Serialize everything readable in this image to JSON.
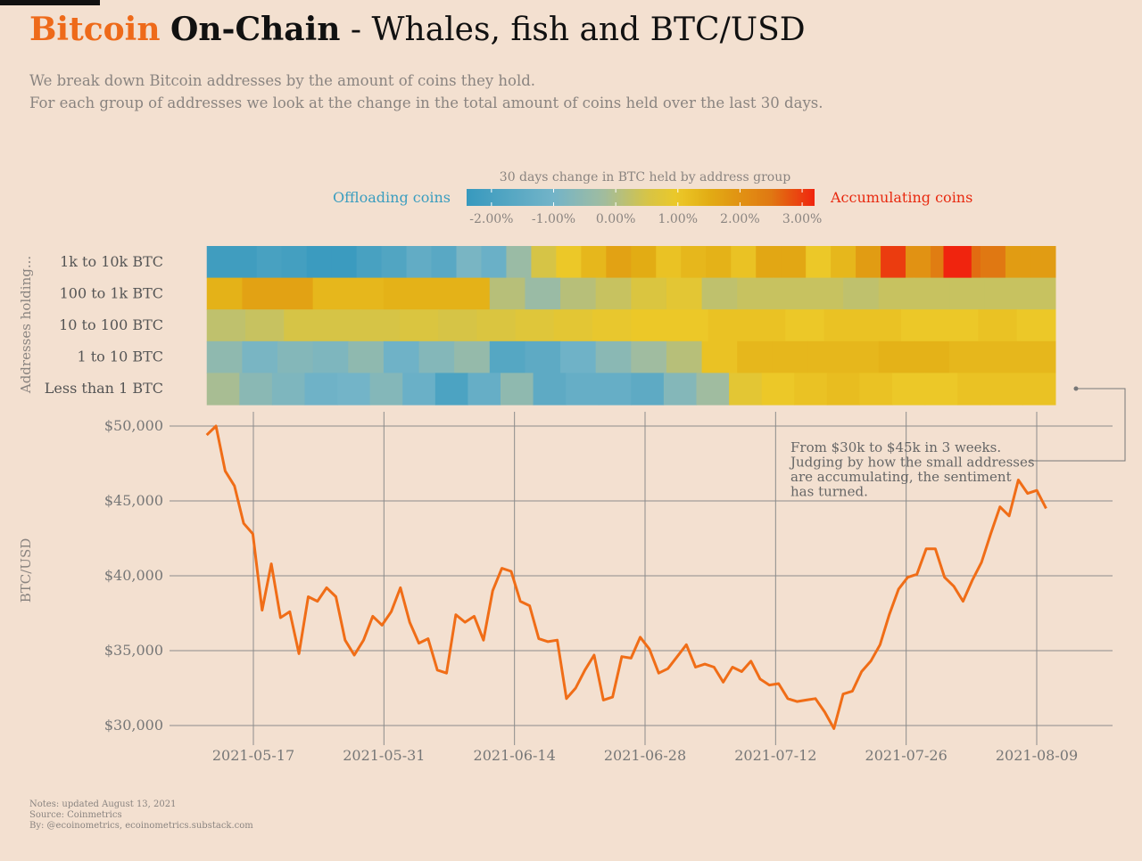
{
  "header": {
    "title_part1": "Bitcoin",
    "title_part2": "On-Chain",
    "title_part3": " - Whales, fish and BTC/USD",
    "subtitle_line1": "We break down Bitcoin addresses by the amount of coins they hold.",
    "subtitle_line2": "For each group of addresses we look at the change in the total amount of coins held over the last 30 days."
  },
  "colors": {
    "background": "#f3e0d0",
    "accent_orange": "#ee6a1a",
    "line": "#f06d17",
    "offloading": "#3a9dbf",
    "accumulating": "#e8290f",
    "grid": "#8c8c8c"
  },
  "legend": {
    "title": "30 days change in BTC held by address group",
    "left_label": "Offloading coins",
    "right_label": "Accumulating coins",
    "ticks": [
      "-2.00%",
      "-1.00%",
      "0.00%",
      "1.00%",
      "2.00%",
      "3.00%"
    ],
    "tick_values": [
      -2,
      -1,
      0,
      1,
      2,
      3
    ],
    "range": [
      -2.4,
      3.2
    ]
  },
  "chart_data": [
    {
      "type": "heatmap",
      "ylabel": "Addresses holding...",
      "rows": [
        "1k to 10k BTC",
        "100 to 1k BTC",
        "10 to 100 BTC",
        "1 to 10 BTC",
        "Less than 1 BTC"
      ],
      "x_start": "2021-05-12",
      "x_end": "2021-08-11",
      "unit": "percent",
      "segments": [
        [
          [
            -2.2,
            -2.2
          ],
          [
            -2.0,
            -2.1
          ],
          [
            -2.3,
            -2.3
          ],
          [
            -2.0,
            -1.8
          ],
          [
            -1.4,
            -1.6
          ],
          [
            -0.9,
            -1.2
          ],
          [
            -0.3,
            0.5
          ],
          [
            1.0,
            1.3
          ],
          [
            1.7,
            1.5
          ],
          [
            1.1,
            1.3
          ],
          [
            1.4,
            1.1
          ],
          [
            1.6,
            1.6
          ],
          [
            1.0,
            1.3
          ],
          [
            1.8,
            3.0
          ],
          [
            2.0,
            2.4
          ],
          [
            2.6,
            2.5
          ],
          [
            1.8,
            1.8
          ]
        ],
        [
          [
            1.4,
            1.7
          ],
          [
            1.7,
            1.3
          ],
          [
            1.3,
            1.4
          ],
          [
            1.4,
            1.4
          ],
          [
            0.1,
            -0.3
          ],
          [
            0.1,
            0.3
          ],
          [
            0.6,
            0.8
          ],
          [
            0.2,
            0.3
          ],
          [
            0.3,
            0.3
          ],
          [
            0.2,
            0.3
          ],
          [
            0.3,
            0.3
          ],
          [
            0.3,
            0.3
          ]
        ],
        [
          [
            0.2,
            0.3
          ],
          [
            0.5,
            0.5
          ],
          [
            0.5,
            0.6
          ],
          [
            0.5,
            0.6
          ],
          [
            0.7,
            0.8
          ],
          [
            0.9,
            1.0
          ],
          [
            1.0,
            1.1
          ],
          [
            1.1,
            1.0
          ],
          [
            1.1,
            1.1
          ],
          [
            1.0,
            1.0
          ],
          [
            1.1,
            1.0
          ]
        ],
        [
          [
            -0.5,
            -0.9
          ],
          [
            -0.7,
            -0.8
          ],
          [
            -0.5,
            -1.1
          ],
          [
            -0.7,
            -0.4
          ],
          [
            -1.7,
            -1.5
          ],
          [
            -1.1,
            -0.6
          ],
          [
            -0.2,
            0.1
          ],
          [
            1.1,
            1.3
          ],
          [
            1.3,
            1.3
          ],
          [
            1.3,
            1.4
          ],
          [
            1.4,
            1.3
          ],
          [
            1.3,
            1.3
          ]
        ],
        [
          [
            -0.1,
            -0.6
          ],
          [
            -0.8,
            -1.1
          ],
          [
            -1.0,
            -0.7
          ],
          [
            -1.2,
            -1.9
          ],
          [
            -1.3,
            -0.5
          ],
          [
            -1.5,
            -1.3
          ],
          [
            -1.3,
            -1.5
          ],
          [
            -0.7,
            -0.2
          ],
          [
            0.8,
            1.0
          ],
          [
            1.1,
            1.2
          ],
          [
            1.1,
            1.0
          ],
          [
            1.0,
            1.1
          ],
          [
            1.1,
            1.1
          ]
        ]
      ],
      "hotspot": {
        "row": 0,
        "from": "2021-07-30",
        "to": "2021-08-02",
        "value": 3.3
      }
    },
    {
      "type": "line",
      "ylabel": "BTC/USD",
      "xlabel": "",
      "ylim": [
        29000,
        50500
      ],
      "yticks": [
        30000,
        35000,
        40000,
        45000,
        50000
      ],
      "ytick_labels": [
        "$30,000",
        "$35,000",
        "$40,000",
        "$45,000",
        "$50,000"
      ],
      "xticks": [
        "2021-05-17",
        "2021-05-31",
        "2021-06-14",
        "2021-06-28",
        "2021-07-12",
        "2021-07-26",
        "2021-08-09"
      ],
      "x_start": "2021-05-12",
      "x_end": "2021-08-10",
      "series": [
        {
          "values": [
            49400,
            50000,
            47000,
            46000,
            43500,
            42800,
            37700,
            40800,
            37200,
            37600,
            34800,
            38600,
            38300,
            39200,
            38600,
            35700,
            34700,
            35700,
            37300,
            36700,
            37600,
            39200,
            36900,
            35500,
            35800,
            33700,
            33500,
            37400,
            36900,
            37300,
            35700,
            39000,
            40500,
            40300,
            38300,
            38000,
            35800,
            35600,
            35700,
            31800,
            32500,
            33700,
            34700,
            31700,
            31900,
            34600,
            34500,
            35900,
            35100,
            33500,
            33800,
            34600,
            35400,
            33900,
            34100,
            33900,
            32900,
            33900,
            33600,
            34300,
            33100,
            32700,
            32800,
            31800,
            31600,
            31700,
            31800,
            30900,
            29800,
            32100,
            32300,
            33600,
            34300,
            35400,
            37400,
            39100,
            39900,
            40100,
            41800,
            41800,
            39900,
            39300,
            38300,
            39700,
            40900,
            42800,
            44600,
            44000,
            46400,
            45500,
            45700,
            44500
          ]
        }
      ],
      "annotation": "From $30k to $45k in 3 weeks.\nJudging by how the small addresses\nare  accumulating, the sentiment\nhas turned."
    }
  ],
  "notes": {
    "line1": "Notes: updated August 13, 2021",
    "line2": "Source: Coinmetrics",
    "line3": "By: @ecoinometrics, ecoinometrics.substack.com"
  }
}
